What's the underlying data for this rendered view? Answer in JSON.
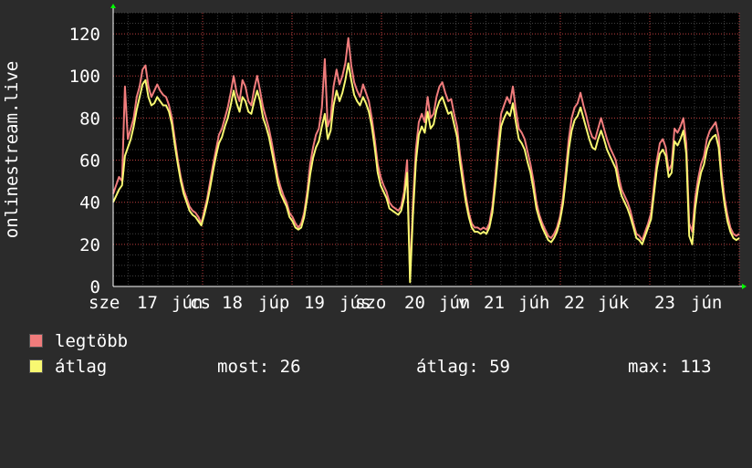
{
  "chart_data": {
    "type": "line",
    "ylabel": "onlinestream.live",
    "ylim": [
      0,
      130
    ],
    "yticks": [
      0,
      20,
      40,
      60,
      80,
      100,
      120
    ],
    "grid": true,
    "x_tick_labels": [
      "sze 17 jún",
      "csü 18 júp",
      "pén 19 jús",
      "szo 20 jún",
      "v 21 júh",
      "22 júk",
      "23 jún"
    ],
    "x_tick_labels_rendered": [
      "sze",
      "17",
      "jún",
      "cs",
      "18",
      "júp",
      "19",
      "jús",
      "szo",
      "20",
      "jún",
      "v",
      "21",
      "júh",
      "22",
      "júk",
      "23",
      "jún"
    ],
    "x_days": 7,
    "series": [
      {
        "name": "legtöbb",
        "color": "#f07c7c",
        "values": [
          44,
          48,
          52,
          50,
          95,
          70,
          75,
          80,
          90,
          95,
          103,
          105,
          95,
          90,
          93,
          96,
          93,
          91,
          90,
          86,
          80,
          70,
          60,
          52,
          46,
          42,
          38,
          36,
          35,
          33,
          30,
          36,
          42,
          50,
          58,
          65,
          72,
          75,
          80,
          85,
          92,
          100,
          92,
          88,
          98,
          95,
          88,
          86,
          94,
          100,
          93,
          85,
          80,
          75,
          68,
          60,
          52,
          47,
          43,
          40,
          35,
          33,
          30,
          28,
          30,
          35,
          45,
          58,
          66,
          72,
          75,
          85,
          108,
          76,
          80,
          95,
          103,
          96,
          100,
          106,
          118,
          105,
          97,
          93,
          90,
          96,
          92,
          88,
          80,
          70,
          58,
          52,
          48,
          45,
          40,
          38,
          37,
          36,
          38,
          45,
          60,
          4,
          40,
          65,
          78,
          82,
          78,
          90,
          80,
          82,
          90,
          95,
          97,
          92,
          88,
          89,
          82,
          76,
          63,
          53,
          43,
          35,
          30,
          28,
          28,
          27,
          28,
          27,
          30,
          38,
          52,
          68,
          82,
          86,
          90,
          87,
          95,
          84,
          75,
          73,
          70,
          64,
          58,
          50,
          40,
          34,
          30,
          27,
          24,
          23,
          25,
          28,
          33,
          42,
          55,
          70,
          80,
          85,
          87,
          92,
          86,
          81,
          75,
          71,
          70,
          75,
          80,
          75,
          70,
          66,
          63,
          60,
          52,
          46,
          43,
          40,
          36,
          30,
          25,
          24,
          22,
          26,
          30,
          35,
          48,
          60,
          68,
          70,
          66,
          55,
          58,
          75,
          73,
          76,
          80,
          68,
          30,
          26,
          42,
          51,
          58,
          62,
          70,
          74,
          76,
          78,
          71,
          54,
          42,
          34,
          28,
          25,
          24,
          25
        ],
        "dy": [
          0,
          0,
          0,
          0,
          0
        ]
      },
      {
        "name": "átlag",
        "color": "#f8f871",
        "values": [
          40,
          43,
          46,
          48,
          62,
          66,
          70,
          76,
          84,
          90,
          96,
          98,
          90,
          86,
          87,
          90,
          88,
          86,
          86,
          83,
          77,
          67,
          58,
          50,
          44,
          40,
          36,
          34,
          33,
          31,
          29,
          34,
          40,
          47,
          55,
          62,
          68,
          71,
          76,
          80,
          86,
          93,
          87,
          83,
          90,
          88,
          83,
          82,
          88,
          93,
          88,
          80,
          76,
          71,
          64,
          57,
          49,
          44,
          41,
          38,
          33,
          31,
          28,
          27,
          28,
          33,
          42,
          53,
          61,
          66,
          69,
          76,
          82,
          70,
          74,
          86,
          93,
          88,
          92,
          98,
          106,
          98,
          91,
          88,
          86,
          90,
          87,
          83,
          76,
          66,
          54,
          48,
          45,
          42,
          37,
          36,
          35,
          34,
          36,
          42,
          54,
          2,
          34,
          59,
          72,
          76,
          73,
          83,
          75,
          77,
          84,
          88,
          90,
          86,
          82,
          83,
          77,
          71,
          59,
          49,
          40,
          33,
          28,
          26,
          26,
          25,
          26,
          25,
          28,
          35,
          48,
          63,
          76,
          80,
          83,
          81,
          87,
          78,
          70,
          68,
          65,
          59,
          54,
          46,
          37,
          32,
          28,
          25,
          22,
          21,
          23,
          26,
          31,
          39,
          51,
          65,
          74,
          79,
          81,
          85,
          80,
          75,
          70,
          66,
          65,
          70,
          74,
          70,
          65,
          62,
          59,
          56,
          48,
          43,
          40,
          37,
          33,
          28,
          23,
          22,
          20,
          24,
          28,
          32,
          44,
          56,
          63,
          65,
          62,
          52,
          54,
          69,
          67,
          70,
          74,
          63,
          24,
          20,
          37,
          47,
          54,
          58,
          65,
          69,
          71,
          72,
          66,
          50,
          39,
          31,
          26,
          23,
          22,
          23
        ]
      }
    ],
    "legend": {
      "items": [
        "legtöbb",
        "átlag"
      ],
      "stats": [
        {
          "label": "most:",
          "value": "26"
        },
        {
          "label": "átlag:",
          "value": "59"
        },
        {
          "label": "max:",
          "value": "113"
        }
      ]
    }
  },
  "colors": {
    "background": "#2b2b2b",
    "plot_background": "#000000",
    "grid_minor": "#404040",
    "grid_major": "#c04040",
    "text": "#ffffff",
    "axis_arrow": "#00ff00"
  }
}
